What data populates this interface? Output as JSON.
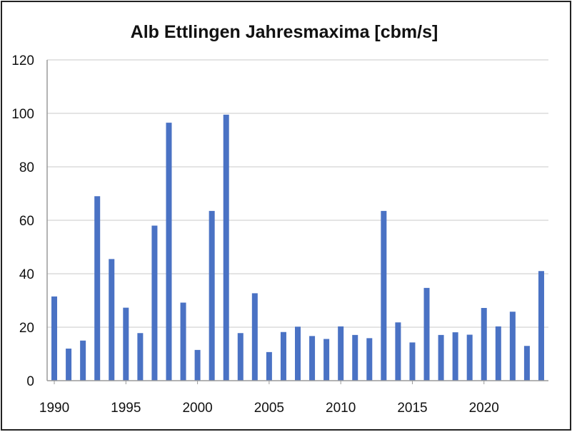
{
  "chart_data": {
    "type": "bar",
    "title": "Alb Ettlingen Jahresmaxima [cbm/s]",
    "xlabel": "",
    "ylabel": "",
    "ylim": [
      0,
      120
    ],
    "yticks": [
      0,
      20,
      40,
      60,
      80,
      100,
      120
    ],
    "xticks": [
      1990,
      1995,
      2000,
      2005,
      2010,
      2015,
      2020
    ],
    "grid": true,
    "legend": "none",
    "colors": {
      "bar": "#4a72c4",
      "grid": "#c8c8c8",
      "axis": "#9a9a9a",
      "text": "#111111"
    },
    "categories": [
      1990,
      1991,
      1992,
      1993,
      1994,
      1995,
      1996,
      1997,
      1998,
      1999,
      2000,
      2001,
      2002,
      2003,
      2004,
      2005,
      2006,
      2007,
      2008,
      2009,
      2010,
      2011,
      2012,
      2013,
      2014,
      2015,
      2016,
      2017,
      2018,
      2019,
      2020,
      2021,
      2022,
      2023,
      2024
    ],
    "values": [
      31.5,
      12,
      15,
      69,
      45.5,
      27.3,
      17.8,
      58,
      96.5,
      29.2,
      11.5,
      63.5,
      99.5,
      17.8,
      32.7,
      10.7,
      18.2,
      20.2,
      16.7,
      15.6,
      20.3,
      17.1,
      15.9,
      63.5,
      21.8,
      14.3,
      34.7,
      17.1,
      18.1,
      17.2,
      27.2,
      20.3,
      25.8,
      13,
      41
    ]
  }
}
